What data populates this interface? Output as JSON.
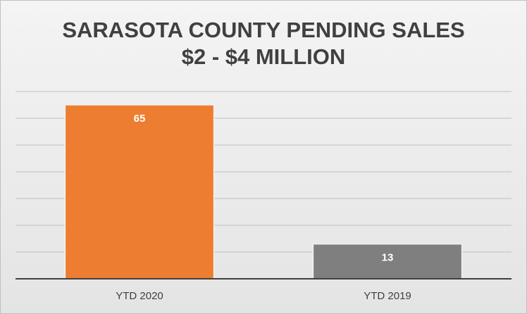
{
  "chart_data": {
    "type": "bar",
    "title": [
      "SARASOTA COUNTY PENDING SALES",
      "$2 - $4 MILLION"
    ],
    "categories": [
      "YTD 2020",
      "YTD 2019"
    ],
    "values": [
      65,
      13
    ],
    "colors": [
      "#ed7d31",
      "#7f7f7f"
    ],
    "ylim": [
      0,
      70
    ],
    "yticks": [
      0,
      10,
      20,
      30,
      40,
      50,
      60,
      70
    ],
    "grid": true
  }
}
